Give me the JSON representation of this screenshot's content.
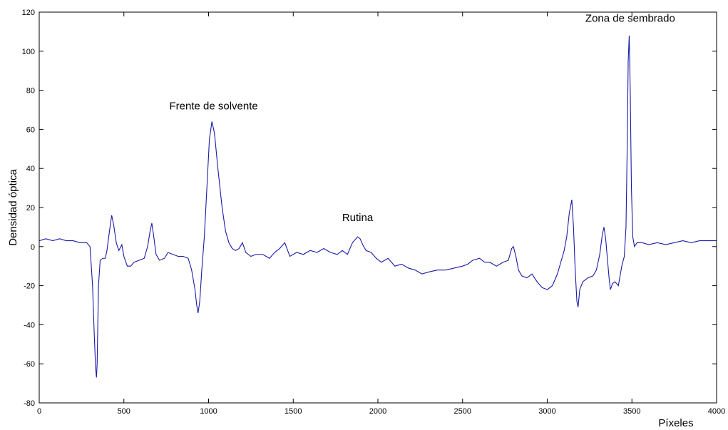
{
  "chart_data": {
    "type": "line",
    "title": "",
    "xlabel": "Píxeles",
    "ylabel": "Densidad óptica",
    "xlim": [
      0,
      4000
    ],
    "ylim": [
      -80,
      120
    ],
    "xticks": [
      0,
      500,
      1000,
      1500,
      2000,
      2500,
      3000,
      3500,
      4000
    ],
    "yticks": [
      -80,
      -60,
      -40,
      -20,
      0,
      20,
      40,
      60,
      80,
      100,
      120
    ],
    "grid": false,
    "line_color": "#1a1aa8",
    "annotations": [
      {
        "text": "Frente de solvente",
        "x": 1030,
        "y": 65
      },
      {
        "text": "Rutina",
        "x": 1880,
        "y": 8
      },
      {
        "text": "Zona de sembrado",
        "x": 3490,
        "y": 110
      }
    ],
    "series": [
      {
        "values": [
          [
            0,
            3
          ],
          [
            40,
            4
          ],
          [
            80,
            3
          ],
          [
            120,
            4
          ],
          [
            160,
            3
          ],
          [
            200,
            3
          ],
          [
            240,
            2
          ],
          [
            280,
            2
          ],
          [
            300,
            0
          ],
          [
            315,
            -20
          ],
          [
            325,
            -45
          ],
          [
            333,
            -62
          ],
          [
            338,
            -67
          ],
          [
            342,
            -60
          ],
          [
            350,
            -20
          ],
          [
            360,
            -7
          ],
          [
            375,
            -6
          ],
          [
            390,
            -6
          ],
          [
            400,
            -2
          ],
          [
            415,
            8
          ],
          [
            428,
            16
          ],
          [
            440,
            11
          ],
          [
            455,
            2
          ],
          [
            470,
            -2
          ],
          [
            488,
            1
          ],
          [
            500,
            -5
          ],
          [
            520,
            -10
          ],
          [
            540,
            -10
          ],
          [
            560,
            -8
          ],
          [
            590,
            -7
          ],
          [
            620,
            -6
          ],
          [
            640,
            0
          ],
          [
            655,
            8
          ],
          [
            665,
            12
          ],
          [
            675,
            6
          ],
          [
            690,
            -4
          ],
          [
            710,
            -7
          ],
          [
            740,
            -6
          ],
          [
            760,
            -3
          ],
          [
            790,
            -4
          ],
          [
            820,
            -5
          ],
          [
            850,
            -5
          ],
          [
            880,
            -6
          ],
          [
            900,
            -12
          ],
          [
            920,
            -22
          ],
          [
            930,
            -30
          ],
          [
            938,
            -34
          ],
          [
            948,
            -28
          ],
          [
            960,
            -12
          ],
          [
            975,
            5
          ],
          [
            990,
            30
          ],
          [
            1005,
            55
          ],
          [
            1020,
            64
          ],
          [
            1035,
            58
          ],
          [
            1055,
            40
          ],
          [
            1080,
            20
          ],
          [
            1100,
            8
          ],
          [
            1120,
            2
          ],
          [
            1140,
            -1
          ],
          [
            1160,
            -2
          ],
          [
            1180,
            -1
          ],
          [
            1200,
            2
          ],
          [
            1220,
            -3
          ],
          [
            1250,
            -5
          ],
          [
            1280,
            -4
          ],
          [
            1320,
            -4
          ],
          [
            1360,
            -6
          ],
          [
            1390,
            -3
          ],
          [
            1420,
            -1
          ],
          [
            1450,
            2
          ],
          [
            1480,
            -5
          ],
          [
            1520,
            -3
          ],
          [
            1560,
            -4
          ],
          [
            1600,
            -2
          ],
          [
            1640,
            -3
          ],
          [
            1680,
            -1
          ],
          [
            1720,
            -3
          ],
          [
            1760,
            -4
          ],
          [
            1790,
            -2
          ],
          [
            1820,
            -4
          ],
          [
            1850,
            2
          ],
          [
            1880,
            5
          ],
          [
            1895,
            4
          ],
          [
            1910,
            1
          ],
          [
            1930,
            -2
          ],
          [
            1960,
            -3
          ],
          [
            1990,
            -6
          ],
          [
            2020,
            -8
          ],
          [
            2060,
            -6
          ],
          [
            2100,
            -10
          ],
          [
            2140,
            -9
          ],
          [
            2180,
            -11
          ],
          [
            2220,
            -12
          ],
          [
            2260,
            -14
          ],
          [
            2300,
            -13
          ],
          [
            2350,
            -12
          ],
          [
            2400,
            -12
          ],
          [
            2450,
            -11
          ],
          [
            2500,
            -10
          ],
          [
            2530,
            -9
          ],
          [
            2560,
            -7
          ],
          [
            2600,
            -6
          ],
          [
            2630,
            -8
          ],
          [
            2660,
            -8
          ],
          [
            2700,
            -10
          ],
          [
            2740,
            -8
          ],
          [
            2770,
            -7
          ],
          [
            2790,
            -1
          ],
          [
            2800,
            0
          ],
          [
            2815,
            -5
          ],
          [
            2830,
            -12
          ],
          [
            2850,
            -15
          ],
          [
            2880,
            -16
          ],
          [
            2910,
            -14
          ],
          [
            2940,
            -18
          ],
          [
            2970,
            -21
          ],
          [
            3000,
            -22
          ],
          [
            3030,
            -20
          ],
          [
            3060,
            -14
          ],
          [
            3080,
            -8
          ],
          [
            3100,
            -2
          ],
          [
            3115,
            5
          ],
          [
            3130,
            17
          ],
          [
            3145,
            24
          ],
          [
            3155,
            10
          ],
          [
            3165,
            -12
          ],
          [
            3175,
            -28
          ],
          [
            3182,
            -31
          ],
          [
            3192,
            -22
          ],
          [
            3210,
            -18
          ],
          [
            3240,
            -16
          ],
          [
            3270,
            -15
          ],
          [
            3290,
            -12
          ],
          [
            3310,
            -4
          ],
          [
            3325,
            6
          ],
          [
            3335,
            10
          ],
          [
            3345,
            4
          ],
          [
            3355,
            -6
          ],
          [
            3365,
            -16
          ],
          [
            3373,
            -22
          ],
          [
            3385,
            -19
          ],
          [
            3400,
            -18
          ],
          [
            3420,
            -20
          ],
          [
            3440,
            -10
          ],
          [
            3455,
            -5
          ],
          [
            3465,
            10
          ],
          [
            3472,
            50
          ],
          [
            3478,
            95
          ],
          [
            3484,
            108
          ],
          [
            3490,
            80
          ],
          [
            3497,
            30
          ],
          [
            3505,
            5
          ],
          [
            3515,
            0
          ],
          [
            3530,
            2
          ],
          [
            3560,
            2
          ],
          [
            3600,
            1
          ],
          [
            3650,
            2
          ],
          [
            3700,
            1
          ],
          [
            3750,
            2
          ],
          [
            3800,
            3
          ],
          [
            3850,
            2
          ],
          [
            3900,
            3
          ],
          [
            3950,
            3
          ],
          [
            4000,
            3
          ]
        ]
      }
    ]
  }
}
